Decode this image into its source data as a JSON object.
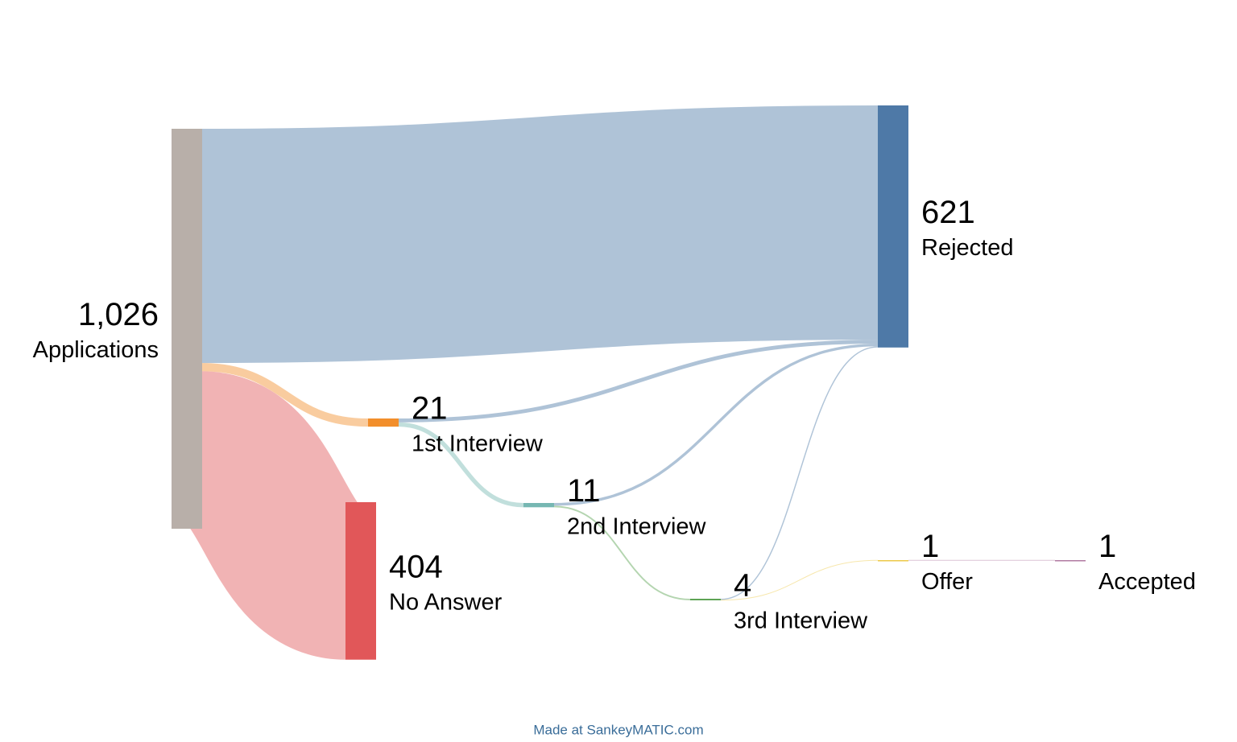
{
  "chart_data": {
    "type": "sankey",
    "nodes": [
      {
        "name": "Applications",
        "value": {
          "value": 1026,
          "label": "1,026"
        },
        "color": "#b8afa9"
      },
      {
        "name": "Rejected",
        "value": 621,
        "color": "#4e79a7"
      },
      {
        "name": "No Answer",
        "value": 404,
        "color": "#e15759"
      },
      {
        "name": "1st Interview",
        "value": 21,
        "color": "#f28e2b"
      },
      {
        "name": "2nd Interview",
        "value": 11,
        "color": "#76b7b2"
      },
      {
        "name": "3rd Interview",
        "value": 4,
        "color": "#59a14f"
      },
      {
        "name": "Offer",
        "value": 1,
        "color": "#edc948"
      },
      {
        "name": "Accepted",
        "value": 1,
        "color": "#b07aa1"
      }
    ],
    "links": [
      {
        "source": "Applications",
        "target": "Rejected",
        "value": 601
      },
      {
        "source": "Applications",
        "target": "1st Interview",
        "value": 21
      },
      {
        "source": "Applications",
        "target": "No Answer",
        "value": 404
      },
      {
        "source": "1st Interview",
        "target": "Rejected",
        "value": 10
      },
      {
        "source": "1st Interview",
        "target": "2nd Interview",
        "value": 11
      },
      {
        "source": "2nd Interview",
        "target": "Rejected",
        "value": 7
      },
      {
        "source": "2nd Interview",
        "target": "3rd Interview",
        "value": 4
      },
      {
        "source": "3rd Interview",
        "target": "Rejected",
        "value": 3
      },
      {
        "source": "3rd Interview",
        "target": "Offer",
        "value": 1
      },
      {
        "source": "Offer",
        "target": "Accepted",
        "value": 1
      }
    ],
    "credit": "Made at SankeyMATIC.com"
  }
}
